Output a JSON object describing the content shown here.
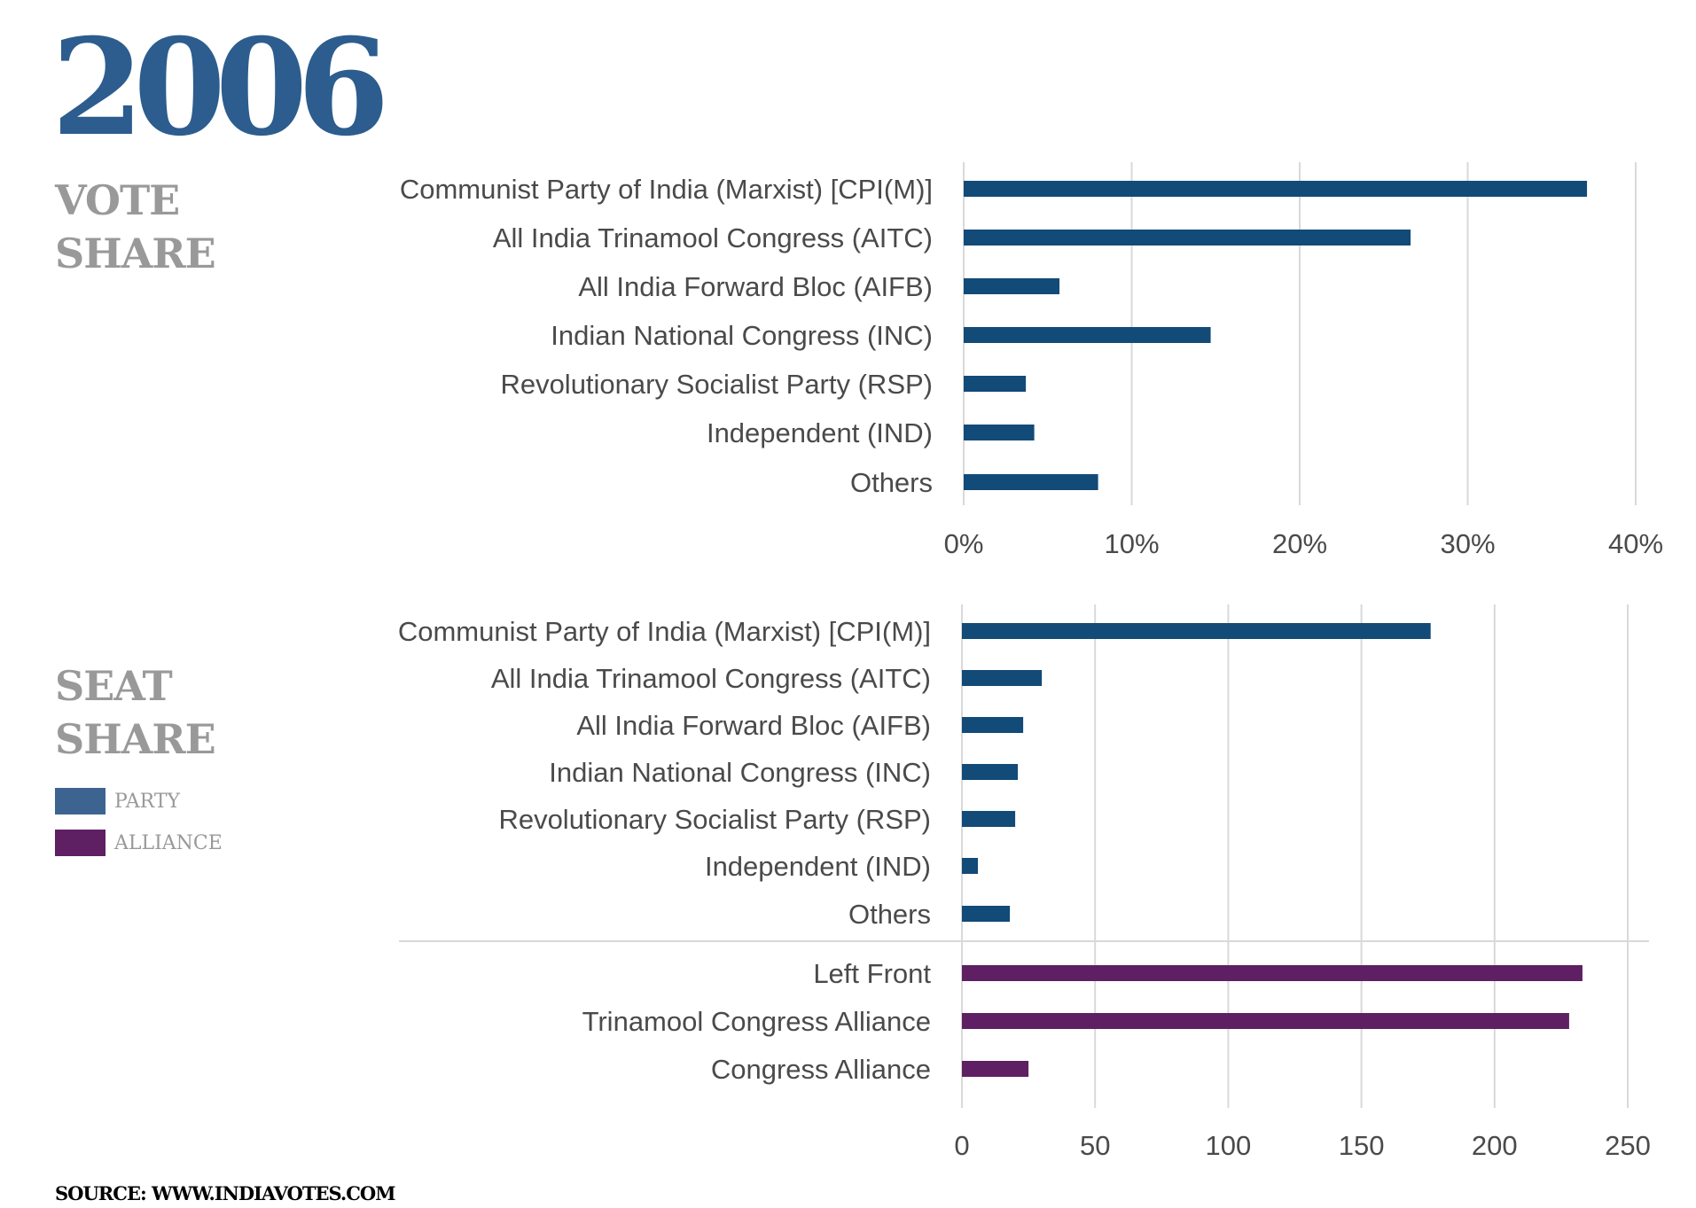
{
  "year": "2006",
  "colors": {
    "year": "#2c5d8e",
    "section_title": "#999999",
    "party": "#124a78",
    "alliance": "#5e1f63",
    "legend_party": "#3d6491",
    "legend_alliance": "#5e1f63",
    "grid": "#d9d9d9",
    "label": "#4a4a4a"
  },
  "vote_share": {
    "title_line1": "VOTE",
    "title_line2": "SHARE"
  },
  "seat_share": {
    "title_line1": "SEAT",
    "title_line2": "SHARE"
  },
  "legend": {
    "party_label": "PARTY",
    "alliance_label": "ALLIANCE"
  },
  "source": "SOURCE: WWW.INDIAVOTES.COM",
  "chart_data": [
    {
      "type": "bar",
      "orientation": "horizontal",
      "title": "VOTE SHARE",
      "categories": [
        "Communist Party of India (Marxist) [CPI(M)]",
        "All India Trinamool Congress (AITC)",
        "All India Forward Bloc (AIFB)",
        "Indian National Congress (INC)",
        "Revolutionary Socialist Party (RSP)",
        "Independent (IND)",
        "Others"
      ],
      "values": [
        37.1,
        26.6,
        5.7,
        14.7,
        3.7,
        4.2,
        8.0
      ],
      "xlim": [
        0,
        40
      ],
      "ticks": [
        0,
        10,
        20,
        30,
        40
      ],
      "tick_labels": [
        "0%",
        "10%",
        "20%",
        "30%",
        "40%"
      ],
      "grid": true
    },
    {
      "type": "bar",
      "orientation": "horizontal",
      "title": "SEAT SHARE",
      "categories": [
        "Communist Party of India (Marxist) [CPI(M)]",
        "All India Trinamool Congress (AITC)",
        "All India Forward Bloc (AIFB)",
        "Indian National Congress (INC)",
        "Revolutionary Socialist Party (RSP)",
        "Independent (IND)",
        "Others",
        "Left Front",
        "Trinamool Congress Alliance",
        "Congress Alliance"
      ],
      "values": [
        176,
        30,
        23,
        21,
        20,
        6,
        18,
        233,
        228,
        25
      ],
      "groups": [
        "PARTY",
        "PARTY",
        "PARTY",
        "PARTY",
        "PARTY",
        "PARTY",
        "PARTY",
        "ALLIANCE",
        "ALLIANCE",
        "ALLIANCE"
      ],
      "series": [
        {
          "name": "PARTY"
        },
        {
          "name": "ALLIANCE"
        }
      ],
      "xlim": [
        0,
        250
      ],
      "ticks": [
        0,
        50,
        100,
        150,
        200,
        250
      ],
      "tick_labels": [
        "0",
        "50",
        "100",
        "150",
        "200",
        "250"
      ],
      "grid": true,
      "legend": "left"
    }
  ]
}
